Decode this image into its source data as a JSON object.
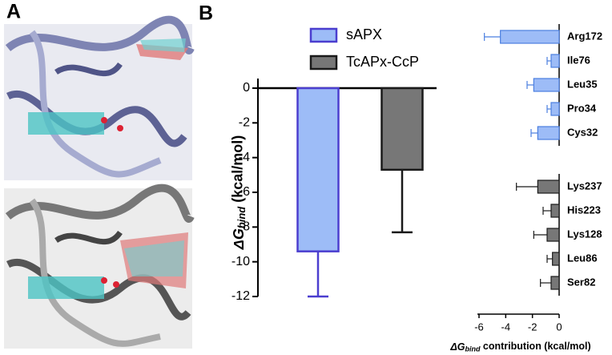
{
  "panel_labels": [
    "A",
    "B"
  ],
  "chart_data": [
    {
      "type": "bar",
      "ylabel": {
        "symbol": "ΔG",
        "subscript": "bind",
        "unit": " (kcal/mol)"
      },
      "categories": [
        "sAPX",
        "TcAPx-CcP"
      ],
      "series": [
        {
          "name": "sAPX",
          "color": "#9dbcf7",
          "edge": "#4b3ecf",
          "value": -9.4,
          "error": 2.6
        },
        {
          "name": "TcAPx-CcP",
          "color": "#777777",
          "edge": "#1a1a1a",
          "value": -4.7,
          "error": 3.6
        }
      ],
      "ylim": [
        -12,
        0
      ],
      "yticks": [
        0,
        -2,
        -4,
        -6,
        -8,
        -10,
        -12
      ]
    },
    {
      "type": "hbar",
      "xlabel": {
        "symbol": "ΔG",
        "subscript": "bind",
        "unit": " contribution (kcal/mol)"
      },
      "groups": [
        {
          "color": "#9dbcf7",
          "edge": "#4b7fe0",
          "categories": [
            "Arg172",
            "Ile76",
            "Leu35",
            "Pro34",
            "Cys32"
          ],
          "values": [
            -4.4,
            -0.6,
            -1.9,
            -0.6,
            -1.6
          ],
          "errors": [
            1.2,
            0.3,
            0.5,
            0.3,
            0.5
          ]
        },
        {
          "color": "#777777",
          "edge": "#1a1a1a",
          "categories": [
            "Lys237",
            "His223",
            "Lys128",
            "Leu86",
            "Ser82"
          ],
          "values": [
            -1.6,
            -0.6,
            -0.9,
            -0.5,
            -0.6
          ],
          "errors": [
            1.6,
            0.6,
            1.0,
            0.4,
            0.8
          ]
        }
      ],
      "xlim": [
        -6,
        0
      ],
      "xticks": [
        -6,
        -4,
        -2,
        0
      ]
    }
  ]
}
